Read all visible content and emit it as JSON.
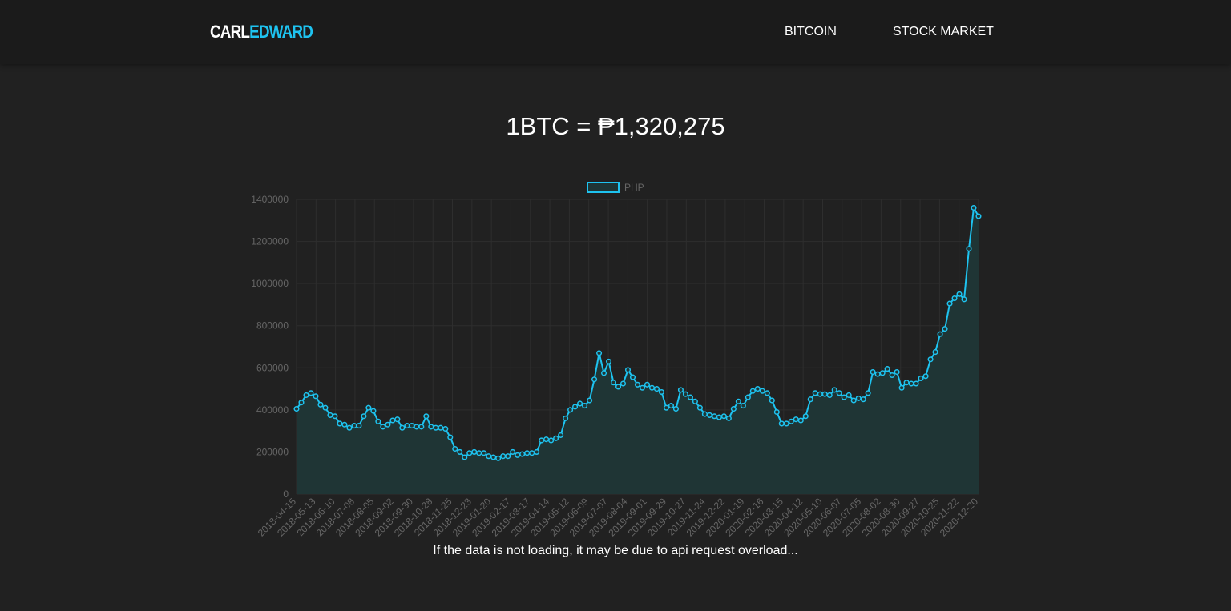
{
  "nav": {
    "logo_part1": "CARL",
    "logo_part2": "EDWARD",
    "links": [
      {
        "label": "BITCOIN"
      },
      {
        "label": "STOCK MARKET"
      }
    ]
  },
  "price": {
    "prefix": "1BTC = ",
    "value": "₱1,320,275"
  },
  "notice": "If the data is not loading, it may be due to api request overload...",
  "colors": {
    "accent": "#1ec3f0",
    "background": "#212121",
    "navbar": "#1b1b1b",
    "grid": "#2e2e2e",
    "axis_text": "#666666",
    "area_fill": "#1f3535"
  },
  "chart_data": {
    "type": "line",
    "legend": {
      "label": "PHP",
      "position": "top"
    },
    "fill": true,
    "grid": true,
    "ylim": [
      0,
      1400000
    ],
    "yticks": [
      0,
      200000,
      400000,
      600000,
      800000,
      1000000,
      1200000,
      1400000
    ],
    "x_tick_labels": [
      "2018-04-15",
      "2018-05-13",
      "2018-06-10",
      "2018-07-08",
      "2018-08-05",
      "2018-09-02",
      "2018-09-30",
      "2018-10-28",
      "2018-11-25",
      "2018-12-23",
      "2019-01-20",
      "2019-02-17",
      "2019-03-17",
      "2019-04-14",
      "2019-05-12",
      "2019-06-09",
      "2019-07-07",
      "2019-08-04",
      "2019-09-01",
      "2019-09-29",
      "2019-10-27",
      "2019-11-24",
      "2019-12-22",
      "2020-01-19",
      "2020-02-16",
      "2020-03-15",
      "2020-04-12",
      "2020-05-10",
      "2020-06-07",
      "2020-07-05",
      "2020-08-02",
      "2020-08-30",
      "2020-09-27",
      "2020-10-25",
      "2020-11-22",
      "2020-12-20"
    ],
    "series": [
      {
        "name": "PHP",
        "start_date": "2018-04-15",
        "interval_days": 7,
        "values": [
          405000,
          435000,
          470000,
          480000,
          465000,
          425000,
          410000,
          375000,
          370000,
          335000,
          330000,
          315000,
          325000,
          325000,
          370000,
          410000,
          395000,
          345000,
          320000,
          330000,
          350000,
          355000,
          315000,
          325000,
          325000,
          320000,
          320000,
          370000,
          320000,
          315000,
          315000,
          310000,
          270000,
          215000,
          200000,
          175000,
          195000,
          200000,
          195000,
          195000,
          180000,
          175000,
          170000,
          180000,
          180000,
          200000,
          185000,
          190000,
          195000,
          195000,
          200000,
          255000,
          260000,
          255000,
          265000,
          280000,
          360000,
          400000,
          415000,
          430000,
          420000,
          445000,
          545000,
          670000,
          575000,
          630000,
          530000,
          510000,
          525000,
          590000,
          555000,
          520000,
          505000,
          520000,
          505000,
          500000,
          485000,
          410000,
          420000,
          405000,
          495000,
          475000,
          460000,
          440000,
          410000,
          380000,
          375000,
          370000,
          365000,
          370000,
          360000,
          405000,
          440000,
          420000,
          460000,
          490000,
          500000,
          490000,
          480000,
          445000,
          390000,
          335000,
          335000,
          345000,
          355000,
          350000,
          370000,
          450000,
          480000,
          475000,
          475000,
          470000,
          495000,
          480000,
          460000,
          470000,
          445000,
          455000,
          450000,
          480000,
          580000,
          570000,
          575000,
          595000,
          565000,
          580000,
          505000,
          530000,
          525000,
          525000,
          550000,
          560000,
          640000,
          675000,
          760000,
          785000,
          905000,
          930000,
          950000,
          925000,
          1165000,
          1360000,
          1320000
        ]
      }
    ]
  }
}
